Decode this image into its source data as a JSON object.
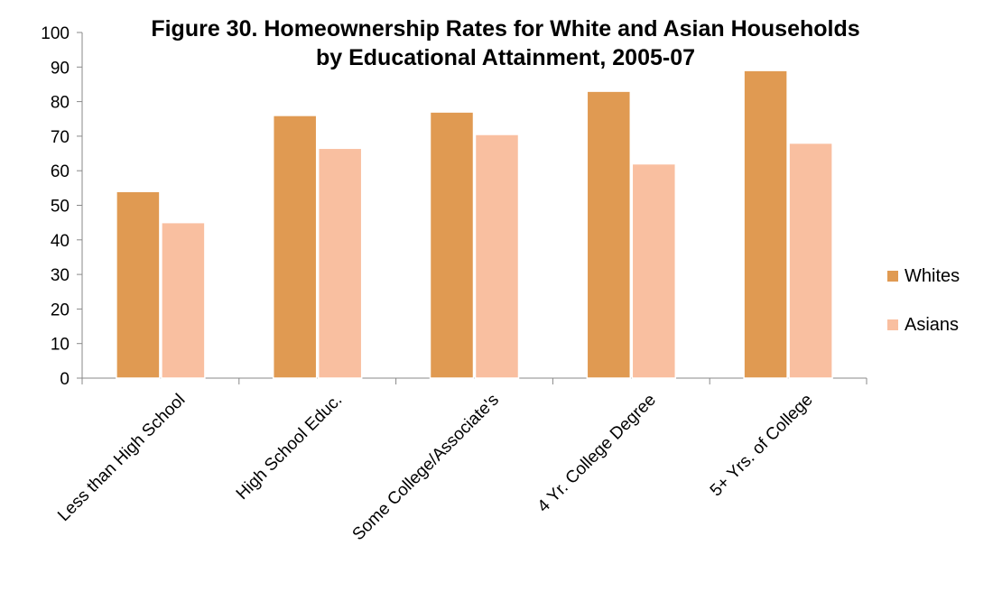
{
  "chart_data": {
    "type": "bar",
    "title": "Figure 30. Homeownership Rates for White and Asian Households",
    "subtitle": "by Educational Attainment, 2005-07",
    "categories": [
      "Less than High School",
      "High School Educ.",
      "Some College/Associate's",
      "4 Yr. College Degree",
      "5+ Yrs. of College"
    ],
    "series": [
      {
        "name": "Whites",
        "color": "#E09A52",
        "values": [
          54,
          76,
          77,
          83,
          89
        ]
      },
      {
        "name": "Asians",
        "color": "#F9BFA0",
        "values": [
          45,
          66.5,
          70.5,
          62,
          68
        ]
      }
    ],
    "yticks": [
      "0",
      "10",
      "20",
      "30",
      "40",
      "50",
      "60",
      "70",
      "80",
      "90",
      "100"
    ],
    "ylim": [
      0,
      100
    ],
    "xlabel": "",
    "ylabel": "",
    "grid": false,
    "legend_position": "right"
  }
}
